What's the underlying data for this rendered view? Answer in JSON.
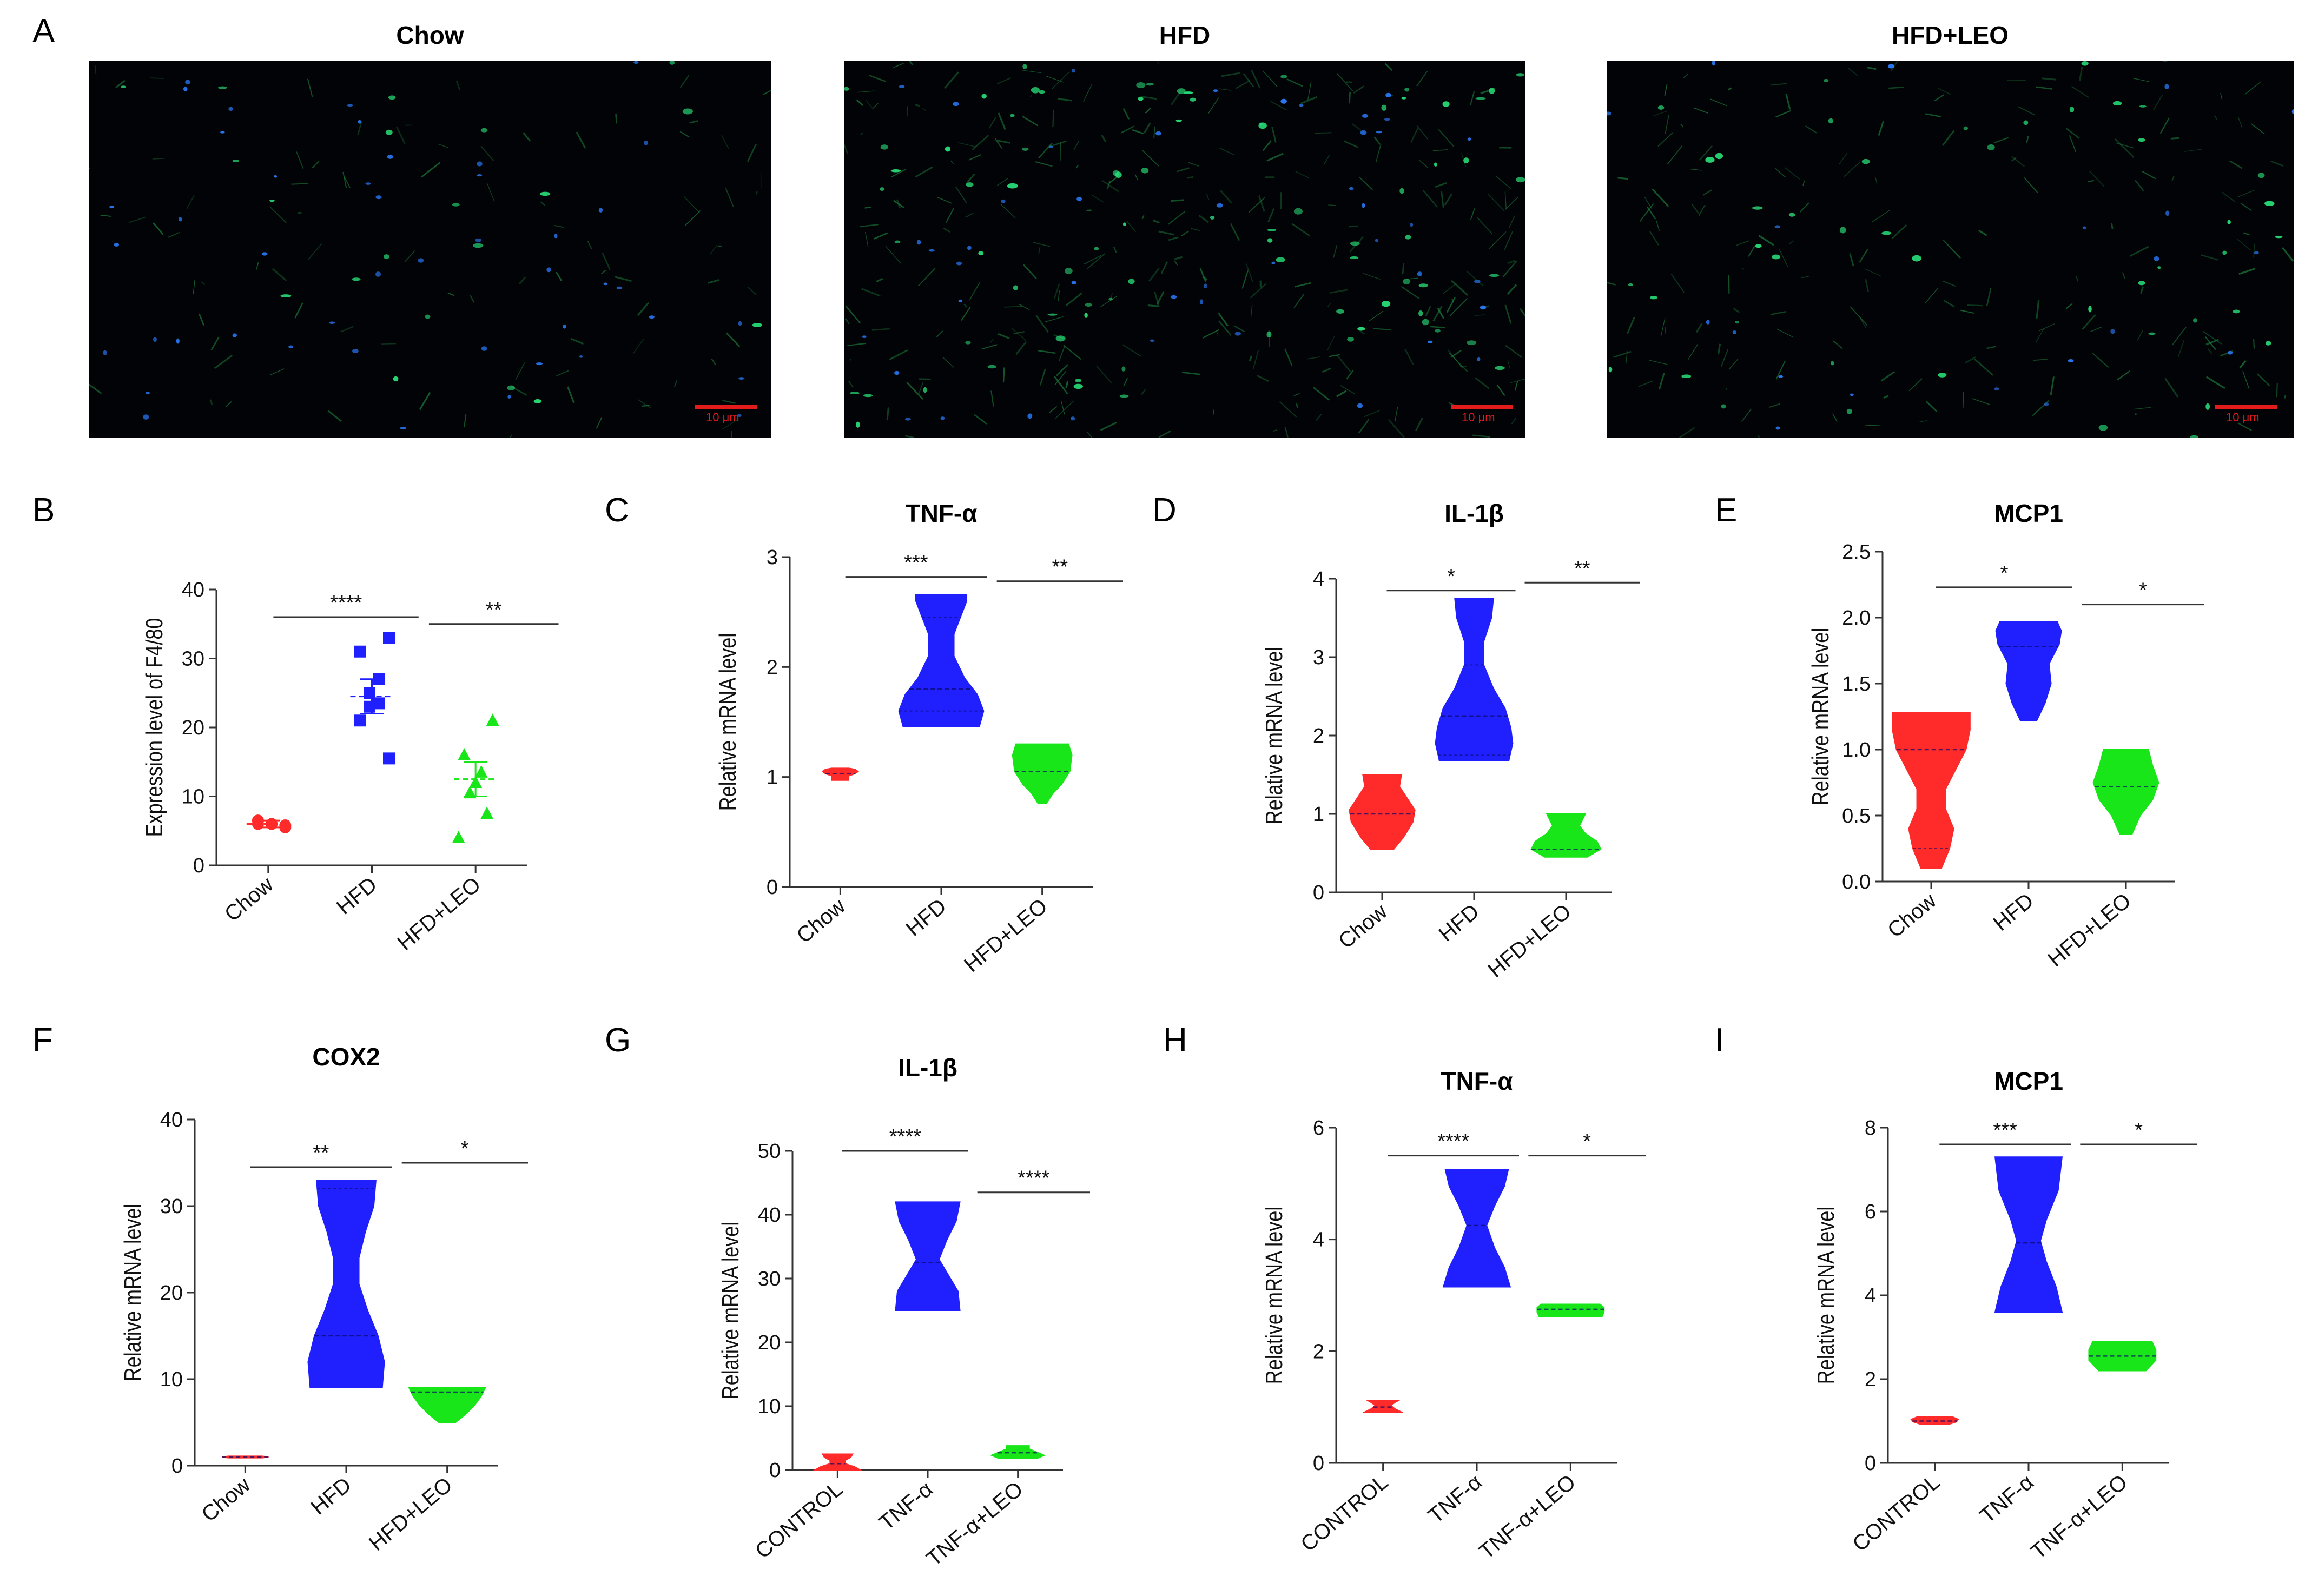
{
  "panel_letters": {
    "A": "A",
    "B": "B",
    "C": "C",
    "D": "D",
    "E": "E",
    "F": "F",
    "G": "G",
    "H": "H",
    "I": "I"
  },
  "micrographs": [
    {
      "title": "Chow",
      "scale_label": "10 μm",
      "green_density": "low",
      "blue_density": "medium"
    },
    {
      "title": "HFD",
      "scale_label": "10 μm",
      "green_density": "high",
      "blue_density": "medium"
    },
    {
      "title": "HFD+LEO",
      "scale_label": "10 μm",
      "green_density": "medium",
      "blue_density": "low"
    }
  ],
  "colors": {
    "red": "#ff2a2a",
    "blue": "#2020ff",
    "green": "#19e619",
    "axis": "#333333"
  },
  "chart_data": [
    {
      "panel": "B",
      "type": "scatter",
      "title": "",
      "ylabel": "Expression level of F4/80",
      "ylim": [
        0,
        40
      ],
      "yticks": [
        0,
        10,
        20,
        30,
        40
      ],
      "categories": [
        "Chow",
        "HFD",
        "HFD+LEO"
      ],
      "series": [
        {
          "category": "Chow",
          "color": "red",
          "marker": "circle",
          "points": [
            5.5,
            6,
            6,
            6,
            6.5,
            5.8
          ],
          "mean": 6,
          "sd": 0.5
        },
        {
          "category": "HFD",
          "color": "blue",
          "marker": "square",
          "points": [
            33,
            31,
            27,
            25,
            23,
            23.5,
            21,
            15.5
          ],
          "mean": 24.5,
          "sd": 2.5
        },
        {
          "category": "HFD+LEO",
          "color": "green",
          "marker": "triangle",
          "points": [
            21,
            16,
            13.5,
            12,
            10.5,
            7.5,
            4
          ],
          "mean": 12.5,
          "sd": 2.5
        }
      ],
      "significance": [
        {
          "from": 0.55,
          "to": 1.95,
          "y": 36,
          "label": "****"
        },
        {
          "from": 2.05,
          "to": 3.3,
          "y": 35,
          "label": "**"
        }
      ]
    },
    {
      "panel": "C",
      "type": "violin",
      "title": "TNF-α",
      "ylabel": "Relative mRNA level",
      "ylim": [
        0,
        3
      ],
      "yticks": [
        0,
        1,
        2,
        3
      ],
      "categories": [
        "Chow",
        "HFD",
        "HFD+LEO"
      ],
      "violins": [
        {
          "category": "Chow",
          "color": "red",
          "profile": [
            [
              0.97,
              0.2
            ],
            [
              1.01,
              0.2
            ],
            [
              1.03,
              0.35
            ],
            [
              1.05,
              0.42
            ],
            [
              1.07,
              0.35
            ],
            [
              1.08,
              0.2
            ]
          ],
          "median": 1.03
        },
        {
          "category": "HFD",
          "color": "blue",
          "profile": [
            [
              1.46,
              0.9
            ],
            [
              1.6,
              1.0
            ],
            [
              1.75,
              0.85
            ],
            [
              1.9,
              0.55
            ],
            [
              2.1,
              0.3
            ],
            [
              2.3,
              0.3
            ],
            [
              2.45,
              0.45
            ],
            [
              2.6,
              0.6
            ],
            [
              2.66,
              0.6
            ]
          ],
          "median": 1.8,
          "quartiles": [
            1.6,
            2.45
          ]
        },
        {
          "category": "HFD+LEO",
          "color": "green",
          "profile": [
            [
              0.76,
              0.1
            ],
            [
              0.85,
              0.25
            ],
            [
              0.93,
              0.45
            ],
            [
              1.05,
              0.65
            ],
            [
              1.2,
              0.7
            ],
            [
              1.3,
              0.62
            ]
          ],
          "median": 1.05
        },
        {
          "_": ""
        }
      ],
      "significance": [
        {
          "from": 0.55,
          "to": 1.95,
          "y": 2.82,
          "label": "***"
        },
        {
          "from": 2.05,
          "to": 3.3,
          "y": 2.78,
          "label": "**"
        }
      ]
    },
    {
      "panel": "D",
      "type": "violin",
      "title": "IL-1β",
      "ylabel": "Relative mRNA level",
      "ylim": [
        0,
        4
      ],
      "yticks": [
        0,
        1,
        2,
        3,
        4
      ],
      "categories": [
        "Chow",
        "HFD",
        "HFD+LEO"
      ],
      "violins": [
        {
          "category": "Chow",
          "color": "red",
          "profile": [
            [
              0.55,
              0.3
            ],
            [
              0.7,
              0.55
            ],
            [
              0.9,
              0.8
            ],
            [
              1.05,
              0.85
            ],
            [
              1.2,
              0.65
            ],
            [
              1.35,
              0.45
            ],
            [
              1.5,
              0.5
            ]
          ],
          "median": 1.0
        },
        {
          "category": "HFD",
          "color": "blue",
          "profile": [
            [
              1.68,
              0.9
            ],
            [
              1.9,
              1.0
            ],
            [
              2.1,
              0.95
            ],
            [
              2.35,
              0.8
            ],
            [
              2.6,
              0.5
            ],
            [
              2.9,
              0.25
            ],
            [
              3.2,
              0.25
            ],
            [
              3.5,
              0.45
            ],
            [
              3.75,
              0.5
            ]
          ],
          "median": 2.25,
          "quartiles": [
            1.75,
            2.9
          ]
        },
        {
          "category": "HFD+LEO",
          "color": "green",
          "profile": [
            [
              0.45,
              0.55
            ],
            [
              0.55,
              0.9
            ],
            [
              0.65,
              0.8
            ],
            [
              0.75,
              0.5
            ],
            [
              0.85,
              0.35
            ],
            [
              1.0,
              0.5
            ]
          ],
          "median": 0.55
        }
      ],
      "significance": [
        {
          "from": 0.55,
          "to": 1.95,
          "y": 3.85,
          "label": "*"
        },
        {
          "from": 2.05,
          "to": 3.3,
          "y": 3.95,
          "label": "**"
        }
      ]
    },
    {
      "panel": "E",
      "type": "violin",
      "title": "MCP1",
      "ylabel": "Relative mRNA level",
      "ylim": [
        0,
        2.5
      ],
      "yticks": [
        0.0,
        0.5,
        1.0,
        1.5,
        2.0,
        2.5
      ],
      "ytick_labels": [
        "0.0",
        "0.5",
        "1.0",
        "1.5",
        "2.0",
        "2.5"
      ],
      "categories": [
        "Chow",
        "HFD",
        "HFD+LEO"
      ],
      "violins": [
        {
          "category": "Chow",
          "color": "red",
          "profile": [
            [
              0.1,
              0.25
            ],
            [
              0.25,
              0.45
            ],
            [
              0.4,
              0.55
            ],
            [
              0.55,
              0.35
            ],
            [
              0.7,
              0.35
            ],
            [
              0.85,
              0.6
            ],
            [
              1.0,
              0.85
            ],
            [
              1.15,
              0.95
            ],
            [
              1.28,
              0.95
            ]
          ],
          "median": 1.0,
          "quartiles": [
            0.25
          ]
        },
        {
          "category": "HFD",
          "color": "blue",
          "profile": [
            [
              1.22,
              0.2
            ],
            [
              1.35,
              0.4
            ],
            [
              1.5,
              0.55
            ],
            [
              1.65,
              0.5
            ],
            [
              1.8,
              0.75
            ],
            [
              1.9,
              0.8
            ],
            [
              1.97,
              0.7
            ]
          ],
          "median": 1.78
        },
        {
          "category": "HFD+LEO",
          "color": "green",
          "profile": [
            [
              0.36,
              0.15
            ],
            [
              0.5,
              0.35
            ],
            [
              0.62,
              0.65
            ],
            [
              0.75,
              0.8
            ],
            [
              0.88,
              0.65
            ],
            [
              1.0,
              0.55
            ]
          ],
          "median": 0.72
        }
      ],
      "significance": [
        {
          "from": 0.55,
          "to": 1.95,
          "y": 2.23,
          "label": "*"
        },
        {
          "from": 2.05,
          "to": 3.3,
          "y": 2.1,
          "label": "*"
        }
      ]
    },
    {
      "panel": "F",
      "type": "violin",
      "title": "COX2",
      "ylabel": "Relative mRNA level",
      "ylim": [
        0,
        40
      ],
      "yticks": [
        0,
        10,
        20,
        30,
        40
      ],
      "categories": [
        "Chow",
        "HFD",
        "HFD+LEO"
      ],
      "violins": [
        {
          "category": "Chow",
          "color": "red",
          "profile": [
            [
              0.9,
              0.4
            ],
            [
              1.0,
              0.55
            ],
            [
              1.1,
              0.4
            ]
          ],
          "median": 1.0
        },
        {
          "category": "HFD",
          "color": "blue",
          "profile": [
            [
              9,
              0.85
            ],
            [
              12,
              0.9
            ],
            [
              15,
              0.75
            ],
            [
              18,
              0.5
            ],
            [
              21,
              0.3
            ],
            [
              24,
              0.3
            ],
            [
              27,
              0.45
            ],
            [
              30,
              0.65
            ],
            [
              33,
              0.7
            ]
          ],
          "median": 15,
          "quartiles": [
            32
          ]
        },
        {
          "category": "HFD+LEO",
          "color": "green",
          "profile": [
            [
              5,
              0.2
            ],
            [
              6,
              0.45
            ],
            [
              7,
              0.65
            ],
            [
              8,
              0.8
            ],
            [
              9,
              0.9
            ]
          ],
          "median": 8.5
        }
      ],
      "significance": [
        {
          "from": 0.55,
          "to": 1.95,
          "y": 34.5,
          "label": "**"
        },
        {
          "from": 2.05,
          "to": 3.3,
          "y": 35,
          "label": "*"
        }
      ]
    },
    {
      "panel": "G",
      "type": "violin",
      "title": "IL-1β",
      "ylabel": "Relative mRNA level",
      "ylim": [
        0,
        50
      ],
      "yticks": [
        0,
        10,
        20,
        30,
        40,
        50
      ],
      "categories": [
        "CONTROL",
        "TNF-α",
        "TNF-α+LEO"
      ],
      "violins": [
        {
          "category": "CONTROL",
          "color": "red",
          "profile": [
            [
              0,
              0.6
            ],
            [
              0.5,
              0.45
            ],
            [
              1.0,
              0.2
            ],
            [
              1.5,
              0.2
            ],
            [
              2.0,
              0.35
            ],
            [
              2.5,
              0.4
            ]
          ],
          "median": 1.0
        },
        {
          "category": "TNF-α",
          "color": "blue",
          "profile": [
            [
              25,
              0.85
            ],
            [
              28,
              0.8
            ],
            [
              31,
              0.5
            ],
            [
              33,
              0.3
            ],
            [
              36,
              0.5
            ],
            [
              39,
              0.75
            ],
            [
              42,
              0.85
            ]
          ],
          "median": 32.5
        },
        {
          "category": "TNF-α+LEO",
          "color": "green",
          "profile": [
            [
              1.8,
              0.5
            ],
            [
              2.3,
              0.7
            ],
            [
              2.8,
              0.5
            ],
            [
              3.3,
              0.3
            ],
            [
              3.8,
              0.3
            ]
          ],
          "median": 2.7
        }
      ],
      "significance": [
        {
          "from": 0.55,
          "to": 1.95,
          "y": 50,
          "label": "****"
        },
        {
          "from": 2.05,
          "to": 3.3,
          "y": 43.5,
          "label": "****"
        }
      ]
    },
    {
      "panel": "H",
      "type": "violin",
      "title": "TNF-α",
      "ylabel": "Relative mRNA level",
      "ylim": [
        0,
        6
      ],
      "yticks": [
        0,
        2,
        4,
        6
      ],
      "categories": [
        "CONTROL",
        "TNF-α",
        "TNF-α+LEO"
      ],
      "violins": [
        {
          "category": "CONTROL",
          "color": "red",
          "profile": [
            [
              0.9,
              0.5
            ],
            [
              0.97,
              0.3
            ],
            [
              1.03,
              0.2
            ],
            [
              1.08,
              0.3
            ],
            [
              1.12,
              0.4
            ]
          ],
          "median": 1.0
        },
        {
          "category": "TNF-α",
          "color": "blue",
          "profile": [
            [
              3.15,
              0.85
            ],
            [
              3.5,
              0.7
            ],
            [
              3.85,
              0.45
            ],
            [
              4.25,
              0.25
            ],
            [
              4.6,
              0.45
            ],
            [
              4.95,
              0.7
            ],
            [
              5.25,
              0.8
            ]
          ],
          "median": 4.25
        },
        {
          "category": "TNF-α+LEO",
          "color": "green",
          "profile": [
            [
              2.62,
              0.8
            ],
            [
              2.7,
              0.85
            ],
            [
              2.78,
              0.85
            ],
            [
              2.84,
              0.75
            ]
          ],
          "median": 2.75
        }
      ],
      "significance": [
        {
          "from": 0.55,
          "to": 1.95,
          "y": 5.5,
          "label": "****"
        },
        {
          "from": 2.05,
          "to": 3.3,
          "y": 5.5,
          "label": "*"
        }
      ]
    },
    {
      "panel": "I",
      "type": "violin",
      "title": "MCP1",
      "ylabel": "Relative mRNA level",
      "ylim": [
        0,
        8
      ],
      "yticks": [
        0,
        2,
        4,
        6,
        8
      ],
      "categories": [
        "CONTROL",
        "TNF-α",
        "TNF-α+LEO"
      ],
      "violins": [
        {
          "category": "CONTROL",
          "color": "red",
          "profile": [
            [
              0.92,
              0.35
            ],
            [
              0.98,
              0.55
            ],
            [
              1.04,
              0.6
            ],
            [
              1.1,
              0.45
            ]
          ],
          "median": 1.0
        },
        {
          "category": "TNF-α",
          "color": "blue",
          "profile": [
            [
              3.6,
              0.85
            ],
            [
              4.2,
              0.7
            ],
            [
              4.8,
              0.45
            ],
            [
              5.3,
              0.3
            ],
            [
              5.8,
              0.45
            ],
            [
              6.5,
              0.75
            ],
            [
              7.3,
              0.85
            ]
          ],
          "median": 5.25
        },
        {
          "category": "TNF-α+LEO",
          "color": "green",
          "profile": [
            [
              2.2,
              0.6
            ],
            [
              2.45,
              0.85
            ],
            [
              2.7,
              0.85
            ],
            [
              2.9,
              0.75
            ]
          ],
          "median": 2.55
        }
      ],
      "significance": [
        {
          "from": 0.55,
          "to": 1.95,
          "y": 7.6,
          "label": "***"
        },
        {
          "from": 2.05,
          "to": 3.3,
          "y": 7.6,
          "label": "*"
        }
      ]
    }
  ]
}
